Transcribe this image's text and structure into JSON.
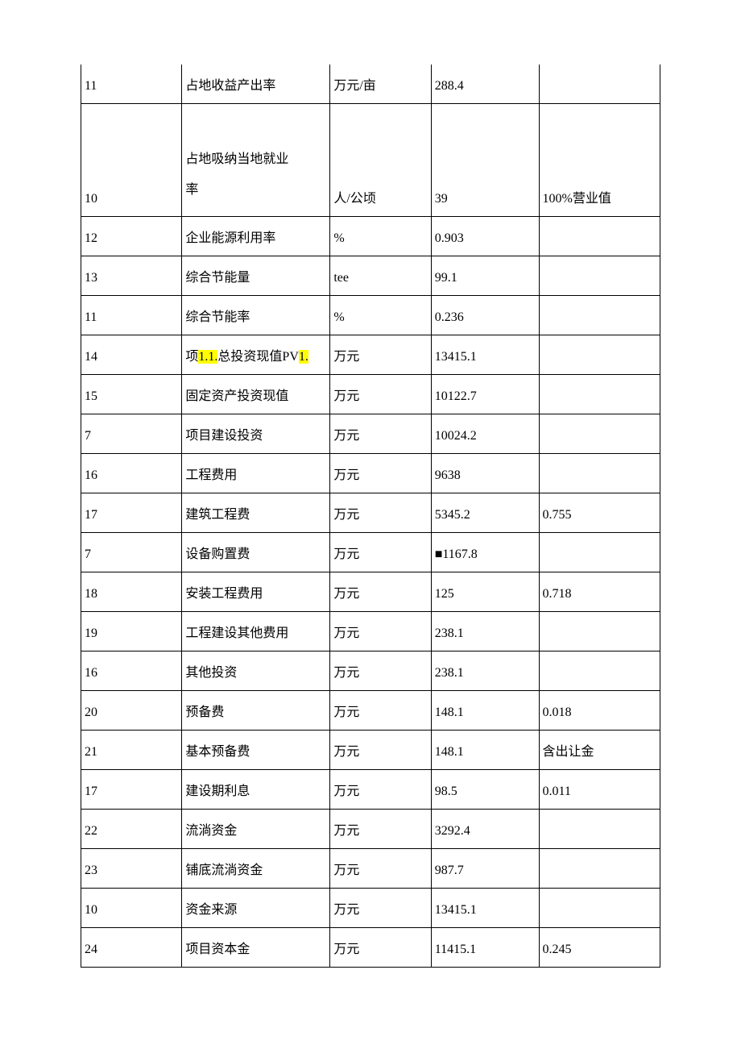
{
  "table": {
    "columns": [
      "col1",
      "col2",
      "col3",
      "col4",
      "col5"
    ],
    "rows": [
      {
        "c1": "11",
        "c2": "占地收益产出率",
        "c3": "万元/亩",
        "c4": "288.4",
        "c5": ""
      },
      {
        "c1": "10",
        "c2_line1": "占地吸纳当地就业",
        "c2_line2": "率",
        "c3": "人/公顷",
        "c4": "39",
        "c5": "100%营业值",
        "tall": true
      },
      {
        "c1": "12",
        "c2": "企业能源利用率",
        "c3": "%",
        "c4": "0.903",
        "c5": ""
      },
      {
        "c1": "13",
        "c2": "综合节能量",
        "c3": "tee",
        "c4": "99.1",
        "c5": ""
      },
      {
        "c1": "11",
        "c2": "综合节能率",
        "c3": "%",
        "c4": "0.236",
        "c5": ""
      },
      {
        "c1": "14",
        "c2_pre": "项",
        "c2_hl1": "1.1.",
        "c2_mid": "总投资现值PV",
        "c2_hl2": "1.",
        "c3": "万元",
        "c4": "13415.1",
        "c5": "",
        "special": true
      },
      {
        "c1": "15",
        "c2": "固定资产投资现值",
        "c3": "万元",
        "c4": "10122.7",
        "c5": ""
      },
      {
        "c1": "7",
        "c2": "项目建设投资",
        "c3": "万元",
        "c4": "10024.2",
        "c5": ""
      },
      {
        "c1": "16",
        "c2": "工程费用",
        "c3": "万元",
        "c4": "9638",
        "c5": ""
      },
      {
        "c1": "17",
        "c2": "建筑工程费",
        "c3": "万元",
        "c4": "5345.2",
        "c5": "0.755"
      },
      {
        "c1": "7",
        "c2": "设备购置费",
        "c3": "万元",
        "c4": "■1167.8",
        "c5": ""
      },
      {
        "c1": "18",
        "c2": "安装工程费用",
        "c3": "万元",
        "c4": "125",
        "c5": "0.718"
      },
      {
        "c1": "19",
        "c2": "工程建设其他费用",
        "c3": "万元",
        "c4": "238.1",
        "c5": ""
      },
      {
        "c1": "16",
        "c2": "其他投资",
        "c3": "万元",
        "c4": "238.1",
        "c5": ""
      },
      {
        "c1": "20",
        "c2": "预备费",
        "c3": "万元",
        "c4": "148.1",
        "c5": "0.018"
      },
      {
        "c1": "21",
        "c2": "基本预备费",
        "c3": "万元",
        "c4": "148.1",
        "c5": "含出让金"
      },
      {
        "c1": "17",
        "c2": "建设期利息",
        "c3": "万元",
        "c4": "98.5",
        "c5": "0.011"
      },
      {
        "c1": "22",
        "c2": "流淌资金",
        "c3": "万元",
        "c4": "3292.4",
        "c5": ""
      },
      {
        "c1": "23",
        "c2": "铺底流淌资金",
        "c3": "万元",
        "c4": "987.7",
        "c5": ""
      },
      {
        "c1": "10",
        "c2": "资金来源",
        "c3": "万元",
        "c4": "13415.1",
        "c5": ""
      },
      {
        "c1": "24",
        "c2": "项目资本金",
        "c3": "万元",
        "c4": "11415.1",
        "c5": "0.245"
      }
    ]
  }
}
